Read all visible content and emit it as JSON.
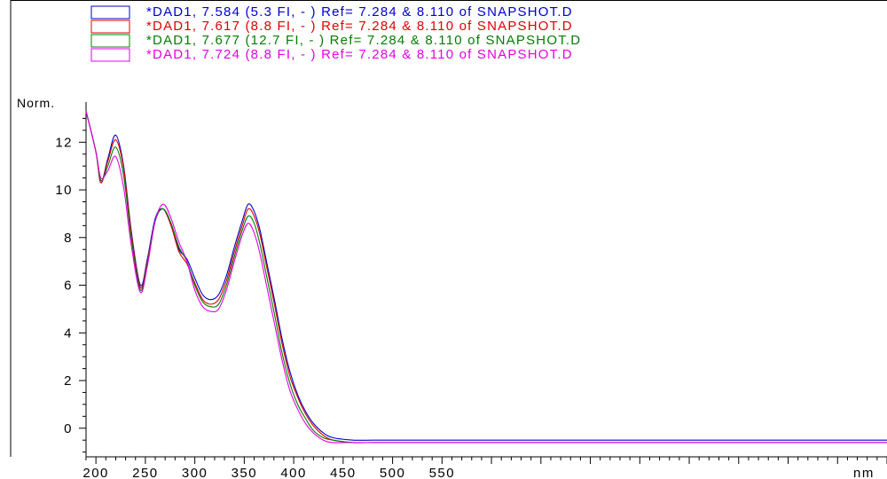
{
  "chart_data": {
    "type": "line",
    "title": "",
    "xlabel": "nm",
    "ylabel": "Norm.",
    "xlim": [
      190,
      1000
    ],
    "ylim": [
      -1.2,
      13.5
    ],
    "x_ticks": [
      "200",
      "250",
      "300",
      "350",
      "400",
      "450",
      "500",
      "550"
    ],
    "y_ticks": [
      "0",
      "2",
      "4",
      "6",
      "8",
      "10",
      "12"
    ],
    "grid": false,
    "legend_position": "top-left",
    "x": [
      190,
      200,
      205,
      212,
      220,
      228,
      236,
      245,
      252,
      260,
      268,
      276,
      284,
      292,
      300,
      308,
      316,
      324,
      332,
      340,
      348,
      354,
      360,
      366,
      372,
      380,
      388,
      396,
      404,
      412,
      420,
      430,
      440,
      460,
      480,
      500,
      520,
      540,
      560,
      580
    ],
    "series": [
      {
        "name": "*DAD1, 7.584 (5.3 FI, - ) Ref= 7.284 &  8.110 of SNAPSHOT.D",
        "color": "#0000cc",
        "values": [
          13.3,
          11.6,
          10.3,
          11.3,
          12.3,
          11.0,
          8.2,
          6.0,
          7.1,
          8.8,
          9.2,
          8.5,
          7.5,
          7.1,
          6.3,
          5.6,
          5.4,
          5.6,
          6.4,
          7.6,
          8.7,
          9.4,
          9.1,
          8.3,
          7.1,
          5.5,
          3.8,
          2.4,
          1.4,
          0.7,
          0.2,
          -0.2,
          -0.4,
          -0.5,
          -0.5,
          -0.5,
          -0.5,
          -0.5,
          -0.5,
          -0.5
        ]
      },
      {
        "name": "*DAD1, 7.617 (8.8 FI, - ) Ref= 7.284 &  8.110 of SNAPSHOT.D",
        "color": "#e00000",
        "values": [
          13.3,
          11.6,
          10.3,
          11.2,
          12.1,
          10.9,
          8.1,
          5.9,
          7.0,
          8.7,
          9.2,
          8.5,
          7.4,
          6.9,
          6.1,
          5.4,
          5.2,
          5.4,
          6.2,
          7.4,
          8.5,
          9.2,
          8.9,
          8.1,
          6.9,
          5.3,
          3.6,
          2.2,
          1.3,
          0.6,
          0.1,
          -0.3,
          -0.5,
          -0.6,
          -0.6,
          -0.6,
          -0.6,
          -0.6,
          -0.6,
          -0.6
        ]
      },
      {
        "name": "*DAD1, 7.677 (12.7 FI, - ) Ref= 7.284 &  8.110 of SNAPSHOT.D",
        "color": "#008000",
        "values": [
          13.3,
          11.6,
          10.4,
          11.0,
          11.8,
          10.6,
          7.9,
          5.8,
          6.9,
          8.7,
          9.2,
          8.6,
          7.6,
          7.0,
          6.0,
          5.3,
          5.1,
          5.2,
          6.0,
          7.2,
          8.3,
          8.9,
          8.6,
          7.7,
          6.5,
          4.9,
          3.2,
          1.9,
          1.0,
          0.4,
          -0.1,
          -0.4,
          -0.5,
          -0.6,
          -0.6,
          -0.6,
          -0.6,
          -0.6,
          -0.6,
          -0.6
        ]
      },
      {
        "name": "*DAD1, 7.724 (8.8 FI, - ) Ref= 7.284 &  8.110 of SNAPSHOT.D",
        "color": "#e600e6",
        "values": [
          13.3,
          11.6,
          10.5,
          10.8,
          11.4,
          10.1,
          7.6,
          5.7,
          6.8,
          8.7,
          9.4,
          8.8,
          7.8,
          7.0,
          5.8,
          5.1,
          4.9,
          5.0,
          5.8,
          7.0,
          8.1,
          8.6,
          8.2,
          7.3,
          6.1,
          4.5,
          2.9,
          1.6,
          0.8,
          0.2,
          -0.2,
          -0.5,
          -0.6,
          -0.6,
          -0.6,
          -0.6,
          -0.6,
          -0.6,
          -0.6,
          -0.6
        ]
      }
    ]
  }
}
